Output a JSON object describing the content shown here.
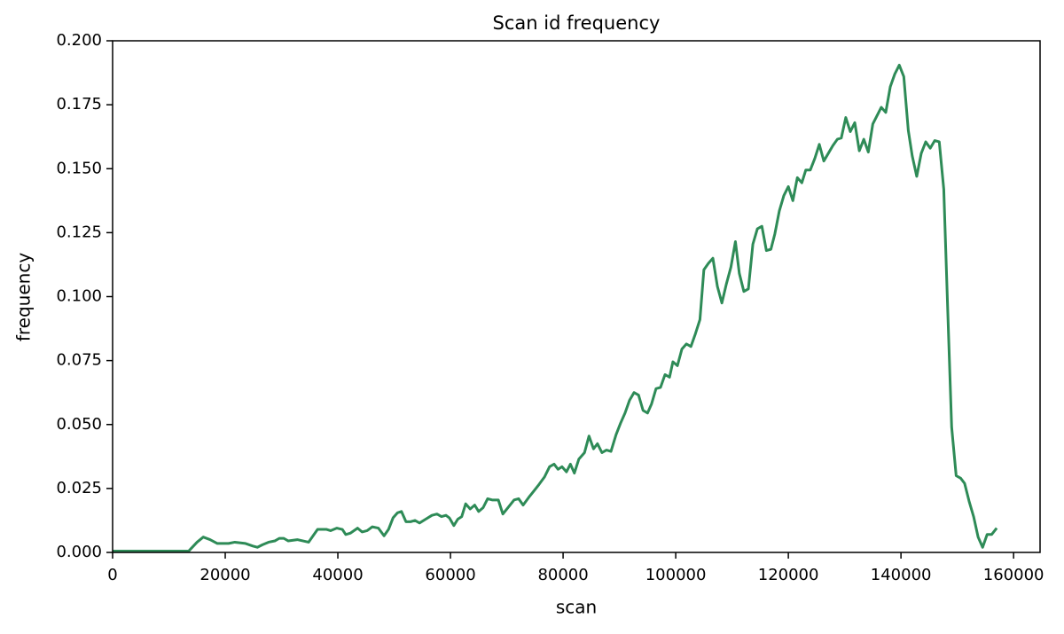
{
  "chart_data": {
    "type": "line",
    "title": "Scan id frequency",
    "x_label": "scan",
    "y_label": "frequency",
    "xlim": [
      0,
      164700
    ],
    "xticks": [
      0,
      20000,
      40000,
      60000,
      80000,
      100000,
      120000,
      140000,
      160000
    ],
    "ylim": [
      0,
      0.2
    ],
    "yticks": [
      {
        "value": 0,
        "label": "0.000"
      },
      {
        "value": 0.025,
        "label": "0.025"
      },
      {
        "value": 0.05,
        "label": "0.050"
      },
      {
        "value": 0.075,
        "label": "0.075"
      },
      {
        "value": 0.1,
        "label": "0.100"
      },
      {
        "value": 0.125,
        "label": "0.125"
      },
      {
        "value": 0.15,
        "label": "0.150"
      },
      {
        "value": 0.175,
        "label": "0.175"
      },
      {
        "value": 0.2,
        "label": "0.200"
      }
    ],
    "grid": false,
    "series": [
      {
        "color": "#2e8b57",
        "x": [
          0,
          13500,
          15000,
          16100,
          17300,
          18600,
          20600,
          21700,
          23600,
          24900,
          25700,
          26600,
          27700,
          28800,
          29600,
          30400,
          31200,
          32800,
          34800,
          36400,
          38000,
          38700,
          39800,
          40800,
          41400,
          42200,
          43500,
          44300,
          45200,
          46100,
          47200,
          48200,
          49000,
          49800,
          50600,
          51300,
          52100,
          52900,
          53700,
          54500,
          55600,
          56700,
          57600,
          58400,
          59200,
          59800,
          60600,
          61300,
          62000,
          62700,
          63500,
          64300,
          65000,
          65800,
          66600,
          67400,
          68500,
          69300,
          70200,
          71300,
          72100,
          72900,
          73900,
          74800,
          75700,
          76700,
          77600,
          78400,
          79100,
          79800,
          80600,
          81300,
          82000,
          82800,
          83800,
          84600,
          85400,
          86100,
          86900,
          87700,
          88500,
          89400,
          90200,
          91000,
          91800,
          92600,
          93400,
          94200,
          95000,
          95700,
          96500,
          97300,
          98100,
          98900,
          99500,
          100300,
          101100,
          101900,
          102700,
          103500,
          104300,
          105000,
          105800,
          106600,
          107400,
          108200,
          109000,
          109800,
          110600,
          111300,
          112100,
          112900,
          113700,
          114500,
          115300,
          116100,
          116900,
          117600,
          118400,
          119200,
          120000,
          120800,
          121600,
          122400,
          123100,
          123900,
          124700,
          125500,
          126300,
          127100,
          127900,
          128700,
          129400,
          130200,
          131000,
          131800,
          132600,
          133400,
          134200,
          135000,
          135700,
          136500,
          137300,
          138100,
          138900,
          139700,
          140500,
          141300,
          142000,
          142800,
          143600,
          144400,
          145200,
          146000,
          146800,
          147600,
          148300,
          149000,
          149800,
          150600,
          151300,
          152100,
          152900,
          153700,
          154500,
          155300,
          156100,
          157000
        ],
        "values": [
          0.0005,
          0.0005,
          0.004,
          0.006,
          0.005,
          0.0035,
          0.0035,
          0.004,
          0.0035,
          0.0025,
          0.002,
          0.003,
          0.004,
          0.0045,
          0.0055,
          0.0055,
          0.0045,
          0.005,
          0.004,
          0.009,
          0.009,
          0.0085,
          0.0095,
          0.009,
          0.007,
          0.0075,
          0.0095,
          0.008,
          0.0085,
          0.01,
          0.0095,
          0.0065,
          0.009,
          0.0135,
          0.0155,
          0.016,
          0.012,
          0.012,
          0.0125,
          0.0115,
          0.013,
          0.0145,
          0.015,
          0.014,
          0.0145,
          0.0135,
          0.0105,
          0.013,
          0.014,
          0.019,
          0.017,
          0.0185,
          0.016,
          0.0175,
          0.021,
          0.0205,
          0.0205,
          0.015,
          0.0175,
          0.0205,
          0.021,
          0.0185,
          0.0215,
          0.024,
          0.0265,
          0.0295,
          0.0335,
          0.0345,
          0.0325,
          0.0335,
          0.0315,
          0.0345,
          0.031,
          0.0365,
          0.039,
          0.0455,
          0.0405,
          0.0425,
          0.039,
          0.04,
          0.0395,
          0.046,
          0.0505,
          0.0545,
          0.0595,
          0.0625,
          0.0615,
          0.0555,
          0.0545,
          0.058,
          0.064,
          0.0645,
          0.0695,
          0.0685,
          0.0745,
          0.073,
          0.0795,
          0.0815,
          0.0805,
          0.0855,
          0.091,
          0.1105,
          0.113,
          0.115,
          0.104,
          0.0975,
          0.105,
          0.1115,
          0.1215,
          0.109,
          0.102,
          0.103,
          0.1205,
          0.1265,
          0.1275,
          0.118,
          0.1185,
          0.1245,
          0.1335,
          0.1395,
          0.143,
          0.1375,
          0.1465,
          0.1445,
          0.1495,
          0.1495,
          0.154,
          0.1595,
          0.153,
          0.156,
          0.159,
          0.1615,
          0.162,
          0.17,
          0.1645,
          0.168,
          0.157,
          0.1615,
          0.1565,
          0.1675,
          0.1705,
          0.174,
          0.172,
          0.182,
          0.187,
          0.1905,
          0.186,
          0.165,
          0.155,
          0.147,
          0.156,
          0.1605,
          0.158,
          0.161,
          0.1605,
          0.142,
          0.095,
          0.049,
          0.03,
          0.029,
          0.027,
          0.02,
          0.014,
          0.006,
          0.002,
          0.007,
          0.007,
          0.0095
        ]
      }
    ]
  }
}
